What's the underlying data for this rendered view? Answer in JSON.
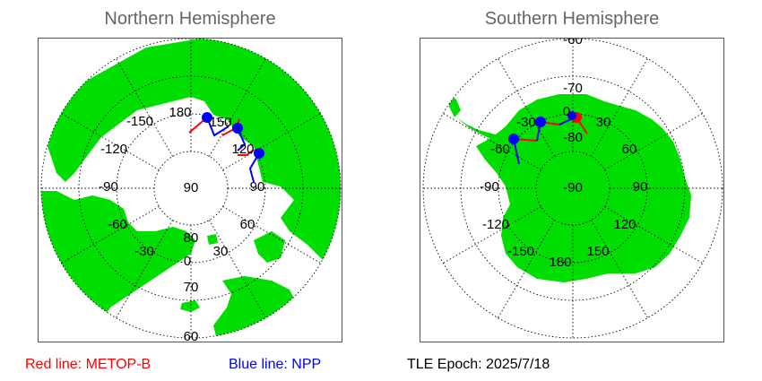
{
  "north": {
    "title": "Northern Hemisphere",
    "lat_labels": [
      "90",
      "80",
      "70",
      "60"
    ],
    "lon_labels": [
      "180",
      "-150",
      "-120",
      "-90",
      "-60",
      "-30",
      "0",
      "30",
      "60",
      "90",
      "120",
      "150"
    ]
  },
  "south": {
    "title": "Southern Hemisphere",
    "lat_labels": [
      "-90",
      "-80",
      "-70",
      "-60"
    ],
    "lon_labels": [
      "0",
      "30",
      "60",
      "90",
      "120",
      "150",
      "180",
      "-150",
      "-120",
      "-90",
      "-60",
      "-30"
    ]
  },
  "legend": {
    "metop": "Red line: METOP-B",
    "npp": "Blue line: NPP",
    "epoch": "TLE Epoch: 2025/7/18"
  },
  "colors": {
    "land": "#00dd00",
    "metop": "#ff0000",
    "npp": "#0000ff",
    "title": "#666666",
    "grid": "#000000"
  }
}
